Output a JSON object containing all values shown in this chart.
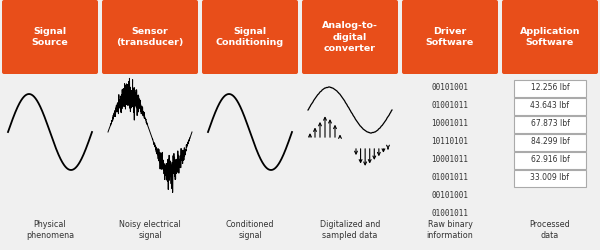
{
  "background_color": "#f0f0f0",
  "orange_color": "#E84E1A",
  "white_text": "#ffffff",
  "dark_text": "#333333",
  "header_labels": [
    "Signal\nSource",
    "Sensor\n(transducer)",
    "Signal\nConditioning",
    "Analog-to-\ndigital\nconverter",
    "Driver\nSoftware",
    "Application\nSoftware"
  ],
  "bottom_labels": [
    "Physical\nphenomena",
    "Noisy electrical\nsignal",
    "Conditioned\nsignal",
    "Digitalized and\nsampled data",
    "Raw binary\ninformation",
    "Processed\ndata"
  ],
  "binary_data": [
    "00101001",
    "01001011",
    "10001011",
    "10110101",
    "10001011",
    "01001011",
    "00101001",
    "01001011"
  ],
  "processed_values": [
    "12.256 lbf",
    "43.643 lbf",
    "67.873 lbf",
    "84.299 lbf",
    "62.916 lbf",
    "33.009 lbf"
  ],
  "fig_width": 6.0,
  "fig_height": 2.5
}
